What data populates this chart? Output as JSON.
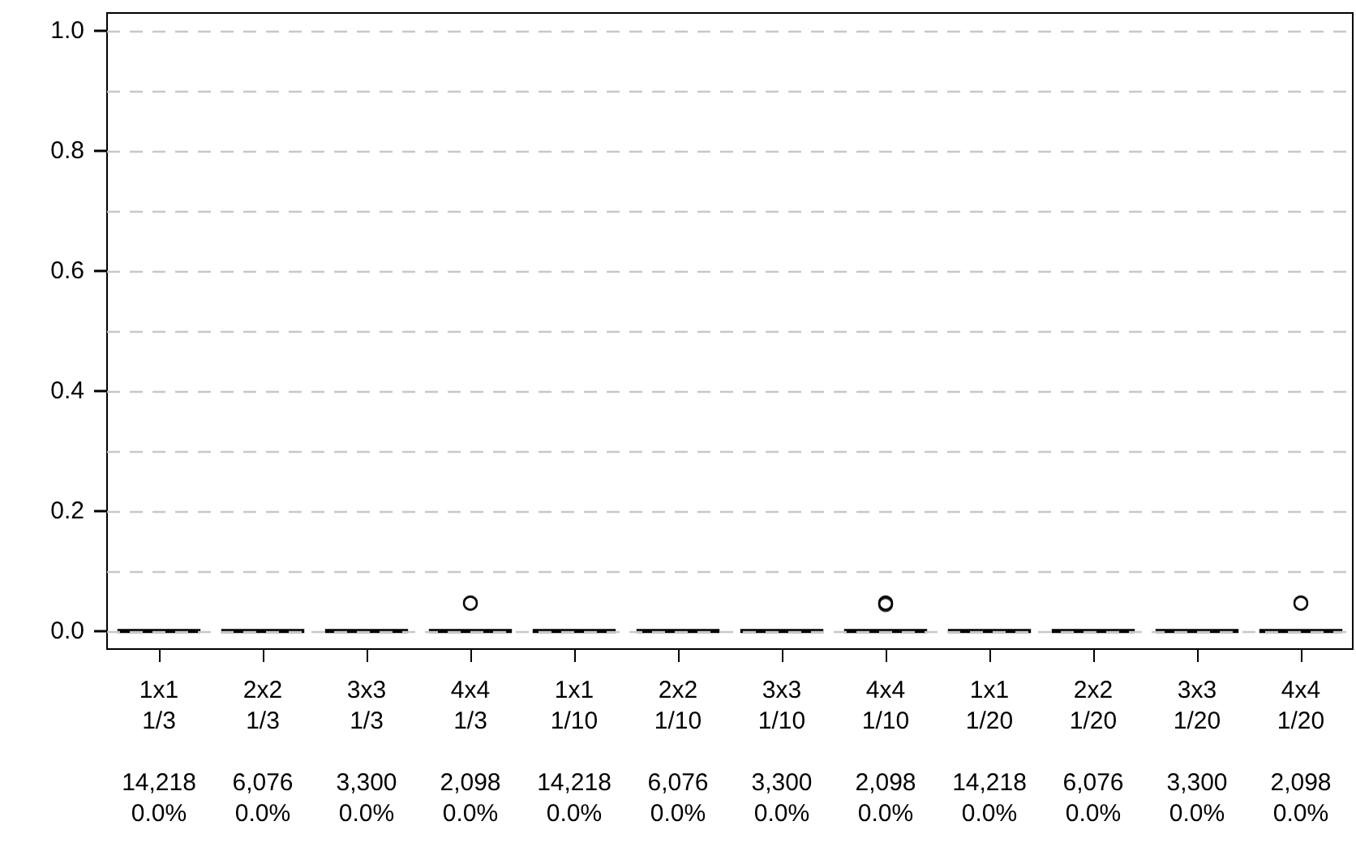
{
  "chart_data": {
    "type": "box",
    "categories": [
      "1x1\n1/3\n\n14,218\n0.0%",
      "2x2\n1/3\n\n6,076\n0.0%",
      "3x3\n1/3\n\n3,300\n0.0%",
      "4x4\n1/3\n\n2,098\n0.0%",
      "1x1\n1/10\n\n14,218\n0.0%",
      "2x2\n1/10\n\n6,076\n0.0%",
      "3x3\n1/10\n\n3,300\n0.0%",
      "4x4\n1/10\n\n2,098\n0.0%",
      "1x1\n1/20\n\n14,218\n0.0%",
      "2x2\n1/20\n\n6,076\n0.0%",
      "3x3\n1/20\n\n3,300\n0.0%",
      "4x4\n1/20\n\n2,098\n0.0%"
    ],
    "boxes": [
      {
        "low": 0,
        "q1": 0,
        "median": 0,
        "q3": 0,
        "high": 0
      },
      {
        "low": 0,
        "q1": 0,
        "median": 0,
        "q3": 0,
        "high": 0
      },
      {
        "low": 0,
        "q1": 0,
        "median": 0,
        "q3": 0,
        "high": 0
      },
      {
        "low": 0,
        "q1": 0,
        "median": 0,
        "q3": 0,
        "high": 0,
        "outliers": [
          0.047,
          0.046
        ]
      },
      {
        "low": 0,
        "q1": 0,
        "median": 0,
        "q3": 0,
        "high": 0
      },
      {
        "low": 0,
        "q1": 0,
        "median": 0,
        "q3": 0,
        "high": 0
      },
      {
        "low": 0,
        "q1": 0,
        "median": 0,
        "q3": 0,
        "high": 0
      },
      {
        "low": 0,
        "q1": 0,
        "median": 0,
        "q3": 0,
        "high": 0,
        "outliers": [
          0.044,
          0.046,
          0.047
        ]
      },
      {
        "low": 0,
        "q1": 0,
        "median": 0,
        "q3": 0,
        "high": 0
      },
      {
        "low": 0,
        "q1": 0,
        "median": 0,
        "q3": 0,
        "high": 0
      },
      {
        "low": 0,
        "q1": 0,
        "median": 0,
        "q3": 0,
        "high": 0
      },
      {
        "low": 0,
        "q1": 0,
        "median": 0,
        "q3": 0,
        "high": 0,
        "outliers": [
          0.047,
          0.046
        ]
      }
    ],
    "color": "#000000",
    "ylim": [
      -0.03,
      1.03
    ],
    "yticks": [
      {
        "value": 0,
        "label": "0.0"
      },
      {
        "value": 0.1,
        "label": null
      },
      0.2,
      {
        "value": 0.3,
        "label": null
      },
      0.4,
      {
        "value": 0.5,
        "label": null
      },
      0.6,
      {
        "value": 0.7,
        "label": null
      },
      0.8,
      {
        "value": 0.9,
        "label": null
      },
      {
        "value": 1,
        "label": "1.0"
      }
    ],
    "grid": "y"
  }
}
